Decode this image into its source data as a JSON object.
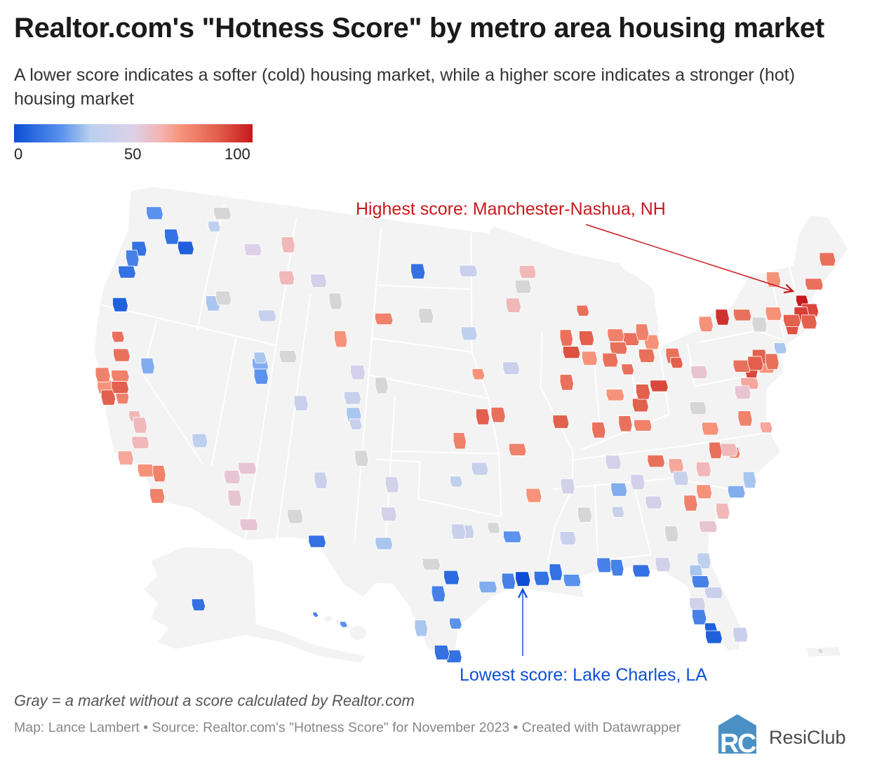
{
  "header": {
    "title": "Realtor.com's \"Hotness Score\" by metro area housing market",
    "subtitle": "A lower score indicates a softer (cold) housing market, while a higher score indicates a stronger (hot) housing market"
  },
  "legend": {
    "min_label": "0",
    "mid_label": "50",
    "max_label": "100",
    "colors": [
      "#0d4fd6",
      "#5a92ee",
      "#b9d0ef",
      "#ddd0e8",
      "#f4b3b0",
      "#f7927a",
      "#e2604d",
      "#c8191d"
    ],
    "no_data_color": "#d6d6d6"
  },
  "annotations": {
    "highest": "Highest score: Manchester-Nashua, NH",
    "lowest": "Lowest score: Lake Charles, LA",
    "highest_color": "#c8191d",
    "lowest_color": "#0d4fd6"
  },
  "footer": {
    "note": "Gray = a market without a score calculated by Realtor.com",
    "source": "Map: Lance Lambert • Source: Realtor.com's \"Hotness Score\" for November 2023 • Created with Datawrapper",
    "logo_text": "ResiClub"
  },
  "map_data": {
    "metros": [
      {
        "lon": -71.5,
        "lat": 43.0,
        "score": 100
      },
      {
        "lon": -71.1,
        "lat": 42.4,
        "score": 90
      },
      {
        "lon": -71.8,
        "lat": 42.3,
        "score": 92
      },
      {
        "lon": -72.7,
        "lat": 41.8,
        "score": 88
      },
      {
        "lon": -72.6,
        "lat": 42.1,
        "score": 85
      },
      {
        "lon": -71.4,
        "lat": 41.8,
        "score": 85
      },
      {
        "lon": -77.6,
        "lat": 43.1,
        "score": 95
      },
      {
        "lon": -76.1,
        "lat": 43.0,
        "score": 80
      },
      {
        "lon": -73.8,
        "lat": 42.7,
        "score": 70
      },
      {
        "lon": -78.9,
        "lat": 42.9,
        "score": 70
      },
      {
        "lon": -73.9,
        "lat": 40.8,
        "score": 30
      },
      {
        "lon": -75.2,
        "lat": 40.0,
        "score": 70
      },
      {
        "lon": -75.5,
        "lat": 40.6,
        "score": 85
      },
      {
        "lon": -76.3,
        "lat": 40.0,
        "score": 90
      },
      {
        "lon": -76.9,
        "lat": 40.3,
        "score": 80
      },
      {
        "lon": -75.9,
        "lat": 40.3,
        "score": 85
      },
      {
        "lon": -74.7,
        "lat": 40.2,
        "score": 80
      },
      {
        "lon": -76.6,
        "lat": 39.3,
        "score": 65
      },
      {
        "lon": -77.2,
        "lat": 38.9,
        "score": 55
      },
      {
        "lon": -77.4,
        "lat": 37.5,
        "score": 75
      },
      {
        "lon": -78.6,
        "lat": 35.8,
        "score": 75
      },
      {
        "lon": -78.9,
        "lat": 36.0,
        "score": 60
      },
      {
        "lon": -80.8,
        "lat": 35.2,
        "score": 60
      },
      {
        "lon": -79.8,
        "lat": 36.1,
        "score": 80
      },
      {
        "lon": -83.9,
        "lat": 36.0,
        "score": 80
      },
      {
        "lon": -86.8,
        "lat": 36.2,
        "score": 45
      },
      {
        "lon": -85.7,
        "lat": 38.2,
        "score": 80
      },
      {
        "lon": -84.5,
        "lat": 38.0,
        "score": 75
      },
      {
        "lon": -90.2,
        "lat": 38.6,
        "score": 85
      },
      {
        "lon": -94.6,
        "lat": 39.1,
        "score": 80
      },
      {
        "lon": -96.0,
        "lat": 41.3,
        "score": 70
      },
      {
        "lon": -93.6,
        "lat": 41.6,
        "score": 40
      },
      {
        "lon": -93.3,
        "lat": 45.0,
        "score": 60
      },
      {
        "lon": -97.3,
        "lat": 37.7,
        "score": 75
      },
      {
        "lon": -93.3,
        "lat": 37.2,
        "score": 75
      },
      {
        "lon": -92.3,
        "lat": 34.7,
        "score": 70
      },
      {
        "lon": -95.7,
        "lat": 39.0,
        "score": 85
      },
      {
        "lon": -103.2,
        "lat": 44.1,
        "score": 75
      },
      {
        "lon": -108.5,
        "lat": 45.8,
        "score": 45
      },
      {
        "lon": -116.2,
        "lat": 43.6,
        "score": 30
      },
      {
        "lon": -117.4,
        "lat": 47.7,
        "score": 35
      },
      {
        "lon": -122.3,
        "lat": 47.6,
        "score": 20
      },
      {
        "lon": -122.7,
        "lat": 45.5,
        "score": 10
      },
      {
        "lon": -123.0,
        "lat": 44.9,
        "score": 15
      },
      {
        "lon": -123.1,
        "lat": 44.1,
        "score": 10
      },
      {
        "lon": -122.9,
        "lat": 42.3,
        "score": 5
      },
      {
        "lon": -119.8,
        "lat": 39.5,
        "score": 25
      },
      {
        "lon": -121.5,
        "lat": 38.6,
        "score": 75
      },
      {
        "lon": -122.3,
        "lat": 37.8,
        "score": 70
      },
      {
        "lon": -121.9,
        "lat": 37.3,
        "score": 85
      },
      {
        "lon": -119.8,
        "lat": 36.7,
        "score": 60
      },
      {
        "lon": -118.2,
        "lat": 34.0,
        "score": 70
      },
      {
        "lon": -117.1,
        "lat": 32.8,
        "score": 75
      },
      {
        "lon": -117.3,
        "lat": 34.0,
        "score": 75
      },
      {
        "lon": -119.0,
        "lat": 35.4,
        "score": 60
      },
      {
        "lon": -115.1,
        "lat": 36.2,
        "score": 35
      },
      {
        "lon": -112.1,
        "lat": 33.5,
        "score": 55
      },
      {
        "lon": -110.9,
        "lat": 32.2,
        "score": 55
      },
      {
        "lon": -111.9,
        "lat": 40.8,
        "score": 25
      },
      {
        "lon": -111.7,
        "lat": 40.2,
        "score": 20
      },
      {
        "lon": -112.0,
        "lat": 41.2,
        "score": 30
      },
      {
        "lon": -105.0,
        "lat": 39.7,
        "score": 40
      },
      {
        "lon": -104.8,
        "lat": 38.8,
        "score": 30
      },
      {
        "lon": -106.6,
        "lat": 35.1,
        "score": 40
      },
      {
        "lon": -106.4,
        "lat": 31.8,
        "score": 10
      },
      {
        "lon": -97.7,
        "lat": 30.3,
        "score": 8
      },
      {
        "lon": -98.5,
        "lat": 29.4,
        "score": 15
      },
      {
        "lon": -95.4,
        "lat": 29.8,
        "score": 25
      },
      {
        "lon": -96.8,
        "lat": 32.8,
        "score": 40
      },
      {
        "lon": -97.3,
        "lat": 32.8,
        "score": 40
      },
      {
        "lon": -97.5,
        "lat": 35.5,
        "score": 35
      },
      {
        "lon": -95.9,
        "lat": 36.2,
        "score": 40
      },
      {
        "lon": -93.2,
        "lat": 30.2,
        "score": 0
      },
      {
        "lon": -91.1,
        "lat": 30.5,
        "score": 10
      },
      {
        "lon": -90.1,
        "lat": 30.0,
        "score": 20
      },
      {
        "lon": -92.0,
        "lat": 30.2,
        "score": 10
      },
      {
        "lon": -94.1,
        "lat": 30.1,
        "score": 15
      },
      {
        "lon": -93.8,
        "lat": 32.5,
        "score": 20
      },
      {
        "lon": -90.2,
        "lat": 32.3,
        "score": 40
      },
      {
        "lon": -90.0,
        "lat": 35.1,
        "score": 45
      },
      {
        "lon": -86.8,
        "lat": 33.5,
        "score": 40
      },
      {
        "lon": -84.4,
        "lat": 33.8,
        "score": 45
      },
      {
        "lon": -88.0,
        "lat": 30.7,
        "score": 15
      },
      {
        "lon": -87.2,
        "lat": 30.5,
        "score": 15
      },
      {
        "lon": -85.7,
        "lat": 30.2,
        "score": 10
      },
      {
        "lon": -84.3,
        "lat": 30.4,
        "score": 45
      },
      {
        "lon": -81.7,
        "lat": 30.3,
        "score": 35
      },
      {
        "lon": -81.4,
        "lat": 28.5,
        "score": 40
      },
      {
        "lon": -82.5,
        "lat": 28.0,
        "score": 45
      },
      {
        "lon": -82.5,
        "lat": 27.3,
        "score": 15
      },
      {
        "lon": -81.9,
        "lat": 26.6,
        "score": 5
      },
      {
        "lon": -81.8,
        "lat": 26.1,
        "score": 5
      },
      {
        "lon": -80.2,
        "lat": 26.0,
        "score": 40
      },
      {
        "lon": -82.3,
        "lat": 29.7,
        "score": 30
      },
      {
        "lon": -82.1,
        "lat": 29.2,
        "score": 15
      },
      {
        "lon": -81.0,
        "lat": 34.0,
        "score": 70
      },
      {
        "lon": -80.0,
        "lat": 32.8,
        "score": 60
      },
      {
        "lon": -81.1,
        "lat": 32.1,
        "score": 55
      },
      {
        "lon": -86.6,
        "lat": 34.7,
        "score": 25
      },
      {
        "lon": -85.3,
        "lat": 35.0,
        "score": 45
      },
      {
        "lon": -97.4,
        "lat": 27.8,
        "score": 20
      },
      {
        "lon": -97.5,
        "lat": 26.0,
        "score": 10
      },
      {
        "lon": -98.2,
        "lat": 26.2,
        "score": 10
      },
      {
        "lon": -99.5,
        "lat": 27.5,
        "score": 30
      },
      {
        "lon": -102.1,
        "lat": 32.0,
        "score": 30
      },
      {
        "lon": -101.9,
        "lat": 33.6,
        "score": 45
      },
      {
        "lon": -101.8,
        "lat": 35.2,
        "score": 45
      },
      {
        "lon": -96.8,
        "lat": 46.9,
        "score": 40
      },
      {
        "lon": -96.7,
        "lat": 43.5,
        "score": 35
      },
      {
        "lon": -100.8,
        "lat": 46.8,
        "score": 10
      },
      {
        "lon": -88.0,
        "lat": 44.5,
        "score": 80
      },
      {
        "lon": -92.1,
        "lat": 46.8,
        "score": 60
      },
      {
        "lon": -104.8,
        "lat": 41.1,
        "score": 45
      },
      {
        "lon": -106.3,
        "lat": 42.8,
        "score": 70
      },
      {
        "lon": -114.0,
        "lat": 46.9,
        "score": 50
      },
      {
        "lon": -111.0,
        "lat": 45.7,
        "score": 60
      },
      {
        "lon": -111.3,
        "lat": 47.5,
        "score": 60
      },
      {
        "lon": -112.0,
        "lat": 43.5,
        "score": 40
      },
      {
        "lon": -119.2,
        "lat": 46.2,
        "score": 5
      },
      {
        "lon": -120.5,
        "lat": 46.6,
        "score": 10
      },
      {
        "lon": -122.4,
        "lat": 40.6,
        "score": 80
      },
      {
        "lon": -121.8,
        "lat": 39.7,
        "score": 80
      },
      {
        "lon": -122.7,
        "lat": 38.4,
        "score": 75
      },
      {
        "lon": -121.0,
        "lat": 37.6,
        "score": 75
      },
      {
        "lon": -121.3,
        "lat": 38.0,
        "score": 85
      },
      {
        "lon": -119.7,
        "lat": 34.4,
        "score": 65
      },
      {
        "lon": -119.3,
        "lat": 36.3,
        "score": 60
      },
      {
        "lon": -111.6,
        "lat": 35.2,
        "score": 55
      },
      {
        "lon": -112.5,
        "lat": 34.6,
        "score": 55
      },
      {
        "lon": -108.6,
        "lat": 39.1,
        "score": 40
      },
      {
        "lon": -104.6,
        "lat": 38.3,
        "score": 40
      },
      {
        "lon": -84.6,
        "lat": 42.7,
        "score": 80
      },
      {
        "lon": -83.1,
        "lat": 42.4,
        "score": 70
      },
      {
        "lon": -83.7,
        "lat": 43.0,
        "score": 75
      },
      {
        "lon": -85.6,
        "lat": 42.3,
        "score": 80
      },
      {
        "lon": -86.3,
        "lat": 41.7,
        "score": 80
      },
      {
        "lon": -87.6,
        "lat": 38.0,
        "score": 80
      },
      {
        "lon": -70.3,
        "lat": 43.7,
        "score": 80
      },
      {
        "lon": -68.8,
        "lat": 44.8,
        "score": 80
      },
      {
        "lon": -73.2,
        "lat": 44.5,
        "score": 70
      },
      {
        "lon": -76.1,
        "lat": 36.8,
        "score": 65
      },
      {
        "lon": -79.9,
        "lat": 37.3,
        "score": 70
      },
      {
        "lon": -82.6,
        "lat": 35.6,
        "score": 65
      },
      {
        "lon": -77.9,
        "lat": 34.2,
        "score": 30
      },
      {
        "lon": -78.9,
        "lat": 33.7,
        "score": 25
      },
      {
        "lon": -82.4,
        "lat": 34.9,
        "score": 40
      },
      {
        "lon": -82.0,
        "lat": 33.5,
        "score": 75
      },
      {
        "lon": -83.0,
        "lat": 40.0,
        "score": 90
      },
      {
        "lon": -84.5,
        "lat": 39.1,
        "score": 85
      },
      {
        "lon": -84.2,
        "lat": 39.8,
        "score": 85
      },
      {
        "lon": -85.1,
        "lat": 41.1,
        "score": 80
      },
      {
        "lon": -85.7,
        "lat": 43.0,
        "score": 75
      },
      {
        "lon": -87.9,
        "lat": 43.0,
        "score": 85
      },
      {
        "lon": -89.4,
        "lat": 43.1,
        "score": 80
      },
      {
        "lon": -89.1,
        "lat": 42.3,
        "score": 88
      },
      {
        "lon": -87.8,
        "lat": 41.9,
        "score": 70
      },
      {
        "lon": -89.6,
        "lat": 40.7,
        "score": 80
      },
      {
        "lon": -86.2,
        "lat": 39.8,
        "score": 70
      },
      {
        "lon": -83.6,
        "lat": 41.7,
        "score": 80
      },
      {
        "lon": -81.7,
        "lat": 41.5,
        "score": 80
      },
      {
        "lon": -81.5,
        "lat": 41.1,
        "score": 85
      },
      {
        "lon": -80.0,
        "lat": 40.4,
        "score": 55
      },
      {
        "lon": -100.0,
        "lat": 44.4,
        "score": null
      },
      {
        "lon": -107.0,
        "lat": 44.8,
        "score": null
      },
      {
        "lon": -110.0,
        "lat": 41.5,
        "score": null
      },
      {
        "lon": -115.5,
        "lat": 44.0,
        "score": null
      },
      {
        "lon": -104.0,
        "lat": 36.5,
        "score": null
      },
      {
        "lon": -99.0,
        "lat": 31.0,
        "score": null
      },
      {
        "lon": -92.5,
        "lat": 46.0,
        "score": null
      },
      {
        "lon": -89.0,
        "lat": 33.5,
        "score": null
      },
      {
        "lon": -95.0,
        "lat": 33.0,
        "score": null
      },
      {
        "lon": -80.5,
        "lat": 38.5,
        "score": null
      },
      {
        "lon": -75.0,
        "lat": 42.3,
        "score": null
      },
      {
        "lon": -103.0,
        "lat": 40.5,
        "score": null
      },
      {
        "lon": -117.0,
        "lat": 48.5,
        "score": null
      },
      {
        "lon": -108.0,
        "lat": 33.0,
        "score": null
      },
      {
        "lon": -83.5,
        "lat": 32.0,
        "score": null
      }
    ],
    "alaska_metros": [
      {
        "score": 10
      }
    ],
    "hawaii_metros": [
      {
        "score": 15
      },
      {
        "score": 20
      }
    ],
    "puerto_rico_metros": [
      {
        "score": null
      }
    ]
  }
}
